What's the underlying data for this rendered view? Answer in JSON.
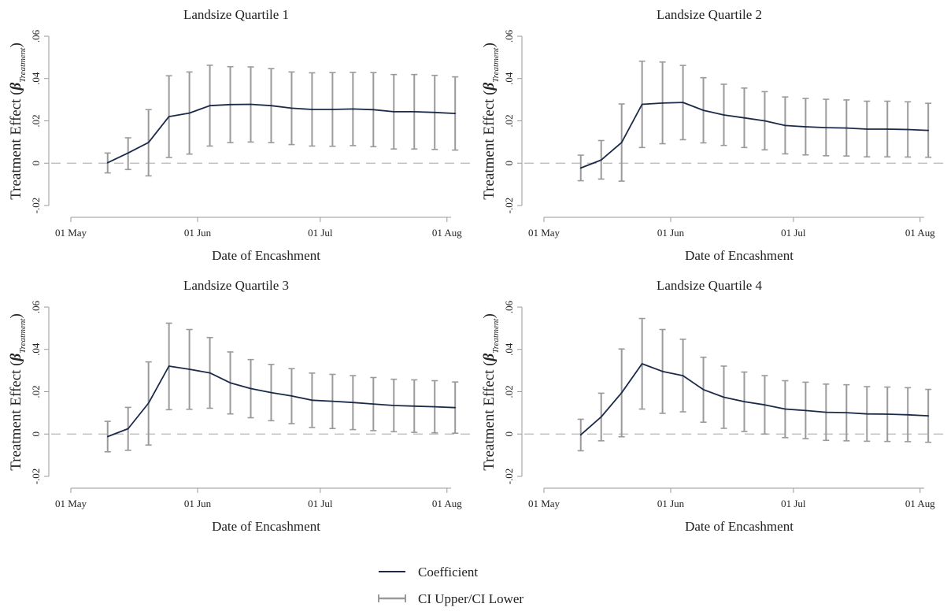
{
  "legend": {
    "coefficient_label": "Coefficient",
    "ci_label": "CI Upper/CI Lower"
  },
  "colors": {
    "coefficient": "#1c2a4a",
    "ci": "#9a9a9a",
    "zero_line": "#b8b8b8",
    "axis": "#999999"
  },
  "chart_data": [
    {
      "type": "line",
      "title": "Landsize Quartile 1",
      "xlabel": "Date of Encashment",
      "ylabel_main": "Treatment Effect (",
      "ylabel_beta": "β",
      "ylabel_sub": "Treatment",
      "ylabel_close": ")",
      "xlim": [
        "2017-05-01",
        "2017-08-02"
      ],
      "ylim": [
        -0.02,
        0.06
      ],
      "x_ticks": [
        "01 May",
        "01 Jun",
        "01 Jul",
        "01 Aug"
      ],
      "x_tick_dates": [
        "2017-05-01",
        "2017-06-01",
        "2017-07-01",
        "2017-08-01"
      ],
      "y_ticks": [
        "-.02",
        "0",
        ".02",
        ".04",
        ".06"
      ],
      "y_tick_values": [
        -0.02,
        0,
        0.02,
        0.04,
        0.06
      ],
      "grid": false,
      "x": [
        "2017-05-10",
        "2017-05-15",
        "2017-05-20",
        "2017-05-25",
        "2017-05-30",
        "2017-06-04",
        "2017-06-09",
        "2017-06-14",
        "2017-06-19",
        "2017-06-24",
        "2017-06-29",
        "2017-07-04",
        "2017-07-09",
        "2017-07-14",
        "2017-07-19",
        "2017-07-24",
        "2017-07-29",
        "2017-08-03"
      ],
      "series": [
        {
          "name": "Coefficient",
          "values": [
            0.0002,
            0.0048,
            0.0098,
            0.022,
            0.0237,
            0.0272,
            0.0277,
            0.0278,
            0.0272,
            0.026,
            0.0254,
            0.0254,
            0.0256,
            0.0253,
            0.0243,
            0.0243,
            0.024,
            0.0235
          ]
        },
        {
          "name": "CI Upper",
          "values": [
            0.0048,
            0.012,
            0.0253,
            0.0413,
            0.0431,
            0.0463,
            0.0456,
            0.0455,
            0.0447,
            0.0431,
            0.0427,
            0.0428,
            0.0429,
            0.0428,
            0.0419,
            0.0419,
            0.0415,
            0.0408
          ]
        },
        {
          "name": "CI Lower",
          "values": [
            -0.0046,
            -0.003,
            -0.006,
            0.0027,
            0.0043,
            0.0081,
            0.0097,
            0.01,
            0.0097,
            0.0088,
            0.0081,
            0.008,
            0.0083,
            0.0078,
            0.0067,
            0.0067,
            0.0065,
            0.0062
          ]
        }
      ]
    },
    {
      "type": "line",
      "title": "Landsize Quartile 2",
      "xlabel": "Date of Encashment",
      "ylabel_main": "Treatment Effect (",
      "ylabel_beta": "β",
      "ylabel_sub": "Treatment",
      "ylabel_close": ")",
      "xlim": [
        "2017-05-01",
        "2017-08-02"
      ],
      "ylim": [
        -0.02,
        0.06
      ],
      "x_ticks": [
        "01 May",
        "01 Jun",
        "01 Jul",
        "01 Aug"
      ],
      "x_tick_dates": [
        "2017-05-01",
        "2017-06-01",
        "2017-07-01",
        "2017-08-01"
      ],
      "y_ticks": [
        "-.02",
        "0",
        ".02",
        ".04",
        ".06"
      ],
      "y_tick_values": [
        -0.02,
        0,
        0.02,
        0.04,
        0.06
      ],
      "grid": false,
      "x": [
        "2017-05-10",
        "2017-05-15",
        "2017-05-20",
        "2017-05-25",
        "2017-05-30",
        "2017-06-04",
        "2017-06-09",
        "2017-06-14",
        "2017-06-19",
        "2017-06-24",
        "2017-06-29",
        "2017-07-04",
        "2017-07-09",
        "2017-07-14",
        "2017-07-19",
        "2017-07-24",
        "2017-07-29",
        "2017-08-03"
      ],
      "series": [
        {
          "name": "Coefficient",
          "values": [
            -0.0023,
            0.0015,
            0.0098,
            0.0278,
            0.0284,
            0.0287,
            0.025,
            0.0228,
            0.0214,
            0.02,
            0.0178,
            0.0172,
            0.0168,
            0.0166,
            0.0161,
            0.0161,
            0.0159,
            0.0155
          ]
        },
        {
          "name": "CI Upper",
          "values": [
            0.0038,
            0.0107,
            0.028,
            0.0482,
            0.0478,
            0.0462,
            0.0404,
            0.0373,
            0.0355,
            0.0338,
            0.0313,
            0.0306,
            0.0302,
            0.0299,
            0.0293,
            0.0293,
            0.029,
            0.0283
          ]
        },
        {
          "name": "CI Lower",
          "values": [
            -0.0083,
            -0.0075,
            -0.0085,
            0.0074,
            0.0092,
            0.0111,
            0.0096,
            0.0084,
            0.0074,
            0.0063,
            0.0044,
            0.0039,
            0.0035,
            0.0034,
            0.003,
            0.003,
            0.0029,
            0.0028
          ]
        }
      ]
    },
    {
      "type": "line",
      "title": "Landsize Quartile 3",
      "xlabel": "Date of Encashment",
      "ylabel_main": "Treatment Effect (",
      "ylabel_beta": "β",
      "ylabel_sub": "Treatment",
      "ylabel_close": ")",
      "xlim": [
        "2017-05-01",
        "2017-08-02"
      ],
      "ylim": [
        -0.02,
        0.06
      ],
      "x_ticks": [
        "01 May",
        "01 Jun",
        "01 Jul",
        "01 Aug"
      ],
      "x_tick_dates": [
        "2017-05-01",
        "2017-06-01",
        "2017-07-01",
        "2017-08-01"
      ],
      "y_ticks": [
        "-.02",
        "0",
        ".02",
        ".04",
        ".06"
      ],
      "y_tick_values": [
        -0.02,
        0,
        0.02,
        0.04,
        0.06
      ],
      "grid": false,
      "x": [
        "2017-05-10",
        "2017-05-15",
        "2017-05-20",
        "2017-05-25",
        "2017-05-30",
        "2017-06-04",
        "2017-06-09",
        "2017-06-14",
        "2017-06-19",
        "2017-06-24",
        "2017-06-29",
        "2017-07-04",
        "2017-07-09",
        "2017-07-14",
        "2017-07-19",
        "2017-07-24",
        "2017-07-29",
        "2017-08-03"
      ],
      "series": [
        {
          "name": "Coefficient",
          "values": [
            -0.0012,
            0.0025,
            0.0146,
            0.0321,
            0.0306,
            0.0289,
            0.0242,
            0.0215,
            0.0196,
            0.018,
            0.016,
            0.0155,
            0.0149,
            0.0142,
            0.0135,
            0.0132,
            0.0129,
            0.0125
          ]
        },
        {
          "name": "CI Upper",
          "values": [
            0.006,
            0.0126,
            0.0341,
            0.0524,
            0.0494,
            0.0456,
            0.0388,
            0.0352,
            0.0329,
            0.0309,
            0.0288,
            0.0282,
            0.0276,
            0.0267,
            0.0259,
            0.0256,
            0.0252,
            0.0246
          ]
        },
        {
          "name": "CI Lower",
          "values": [
            -0.0084,
            -0.0077,
            -0.0052,
            0.0115,
            0.0117,
            0.0122,
            0.0095,
            0.0077,
            0.0063,
            0.0049,
            0.0031,
            0.0026,
            0.0021,
            0.0016,
            0.0011,
            0.0008,
            0.0006,
            0.0004
          ]
        }
      ]
    },
    {
      "type": "line",
      "title": "Landsize Quartile 4",
      "xlabel": "Date of Encashment",
      "ylabel_main": "Treatment Effect (",
      "ylabel_beta": "β",
      "ylabel_sub": "Treatment",
      "ylabel_close": ")",
      "xlim": [
        "2017-05-01",
        "2017-08-02"
      ],
      "ylim": [
        -0.02,
        0.06
      ],
      "x_ticks": [
        "01 May",
        "01 Jun",
        "01 Jul",
        "01 Aug"
      ],
      "x_tick_dates": [
        "2017-05-01",
        "2017-06-01",
        "2017-07-01",
        "2017-08-01"
      ],
      "y_ticks": [
        "-.02",
        "0",
        ".02",
        ".04",
        ".06"
      ],
      "y_tick_values": [
        -0.02,
        0,
        0.02,
        0.04,
        0.06
      ],
      "grid": false,
      "x": [
        "2017-05-10",
        "2017-05-15",
        "2017-05-20",
        "2017-05-25",
        "2017-05-30",
        "2017-06-04",
        "2017-06-09",
        "2017-06-14",
        "2017-06-19",
        "2017-06-24",
        "2017-06-29",
        "2017-07-04",
        "2017-07-09",
        "2017-07-14",
        "2017-07-19",
        "2017-07-24",
        "2017-07-29",
        "2017-08-03"
      ],
      "series": [
        {
          "name": "Coefficient",
          "values": [
            -0.0004,
            0.0081,
            0.0195,
            0.0332,
            0.0296,
            0.0276,
            0.021,
            0.0174,
            0.0153,
            0.0138,
            0.0118,
            0.0111,
            0.0103,
            0.0101,
            0.0095,
            0.0094,
            0.0091,
            0.0086
          ]
        },
        {
          "name": "CI Upper",
          "values": [
            0.007,
            0.0193,
            0.0402,
            0.0546,
            0.0494,
            0.0448,
            0.0363,
            0.0321,
            0.0293,
            0.0276,
            0.0252,
            0.0245,
            0.0236,
            0.0233,
            0.0224,
            0.0222,
            0.0219,
            0.0211
          ]
        },
        {
          "name": "CI Lower",
          "values": [
            -0.0079,
            -0.0032,
            -0.0013,
            0.0118,
            0.0098,
            0.0105,
            0.0056,
            0.0027,
            0.0012,
            0.0,
            -0.0017,
            -0.0022,
            -0.003,
            -0.0032,
            -0.0034,
            -0.0035,
            -0.0036,
            -0.0039
          ]
        }
      ]
    }
  ]
}
